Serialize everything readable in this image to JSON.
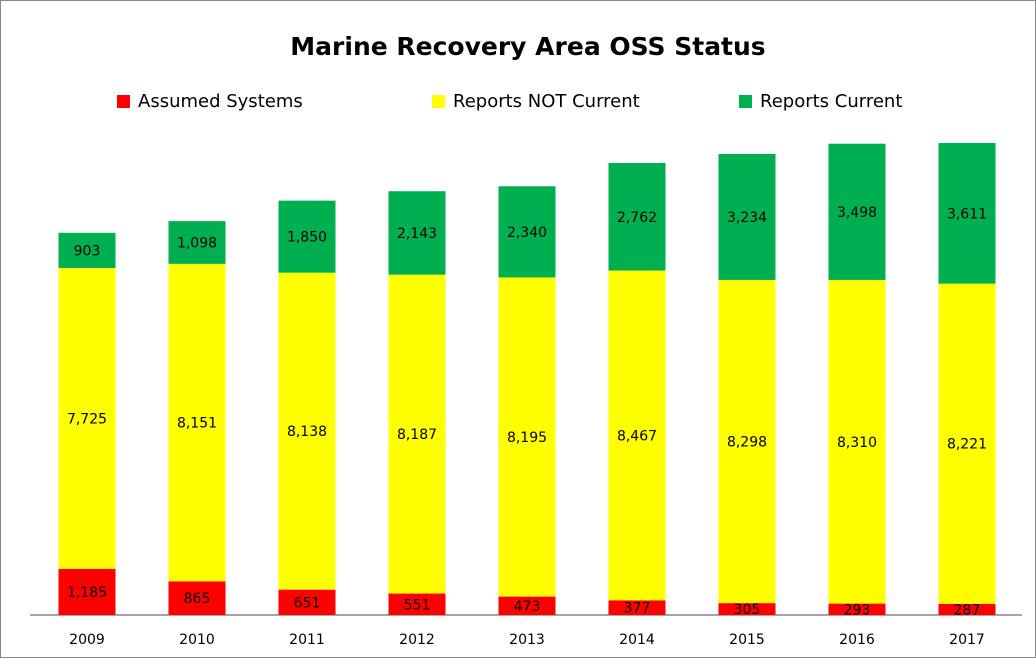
{
  "chart_data": {
    "type": "stacked-bar",
    "title": "Marine Recovery Area OSS Status",
    "categories": [
      "2009",
      "2010",
      "2011",
      "2012",
      "2013",
      "2014",
      "2015",
      "2016",
      "2017"
    ],
    "series": [
      {
        "name": "Assumed Systems",
        "color": "#ff0000",
        "values": [
          1185,
          865,
          651,
          551,
          473,
          377,
          305,
          293,
          287
        ],
        "value_labels": [
          "1,185",
          "865",
          "651",
          "551",
          "473",
          "377",
          "305",
          "293",
          "287"
        ]
      },
      {
        "name": "Reports NOT Current",
        "color": "#ffff00",
        "values": [
          7725,
          8151,
          8138,
          8187,
          8195,
          8467,
          8298,
          8310,
          8221
        ],
        "value_labels": [
          "7,725",
          "8,151",
          "8,138",
          "8,187",
          "8,195",
          "8,467",
          "8,298",
          "8,310",
          "8,221"
        ]
      },
      {
        "name": "Reports Current",
        "color": "#00b050",
        "values": [
          903,
          1098,
          1850,
          2143,
          2340,
          2762,
          3234,
          3498,
          3611
        ],
        "value_labels": [
          "903",
          "1,098",
          "1,850",
          "2,143",
          "2,340",
          "2,762",
          "3,234",
          "3,498",
          "3,611"
        ]
      }
    ],
    "legend": "top"
  }
}
